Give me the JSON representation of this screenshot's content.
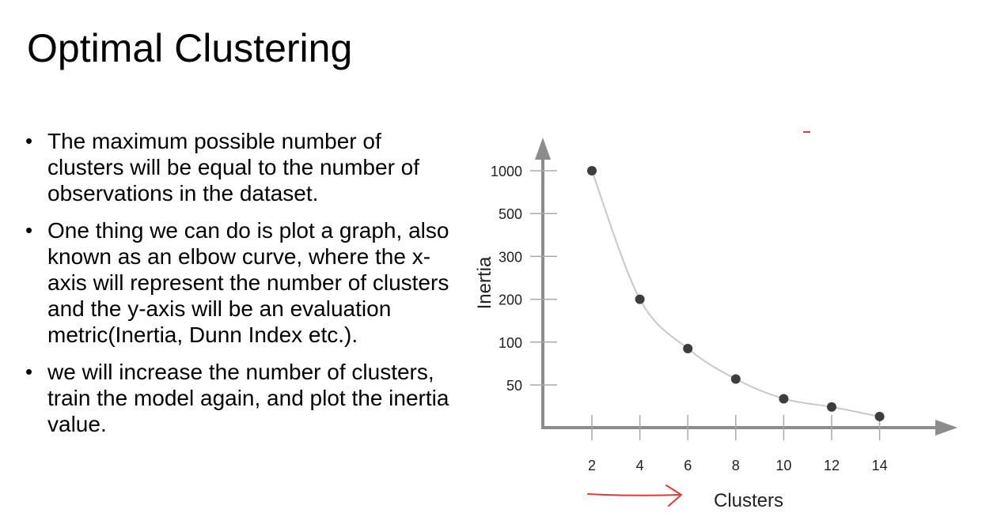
{
  "slide": {
    "title": "Optimal Clustering",
    "bullets": [
      "The maximum possible number of clusters will be equal to the number of observations in the dataset.",
      "One thing we can do is plot a graph, also known as an elbow curve, where the x-axis will represent the number of clusters and the y-axis will be an evaluation metric(Inertia, Dunn Index etc.).",
      "we will increase the number of clusters, train the model again, and plot the inertia value."
    ]
  },
  "chart_data": {
    "type": "line",
    "title": "",
    "xlabel": "Clusters",
    "ylabel": "Inertia",
    "x_ticks": [
      2,
      4,
      6,
      8,
      10,
      12,
      14
    ],
    "y_ticks": [
      "1000",
      "500",
      "300",
      "200",
      "100",
      "50"
    ],
    "x": [
      2,
      4,
      6,
      8,
      10,
      12,
      14
    ],
    "y": [
      1000,
      200,
      90,
      55,
      40,
      35,
      30
    ],
    "y_scale": "non-linear (ticks 50, 100, 200, 300, 500, 1000 evenly spaced)",
    "grid": false,
    "legend": "none",
    "colors": {
      "axis": "#8c8c8c",
      "line": "#c8c8c8",
      "marker": "#3d3d3d",
      "annotation": "#e53935"
    }
  }
}
